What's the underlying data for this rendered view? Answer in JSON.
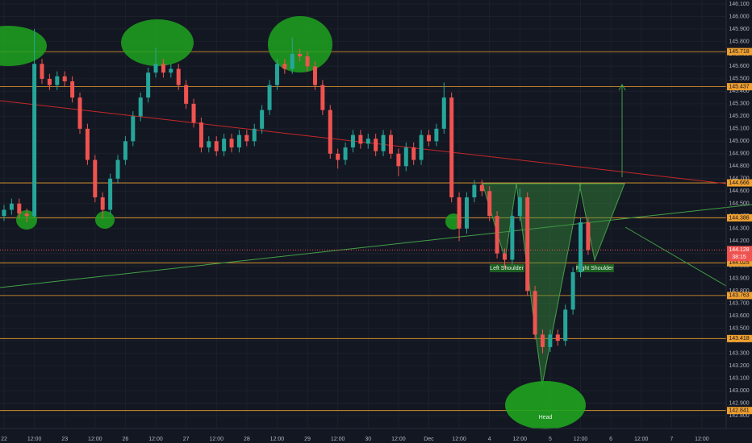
{
  "chart_data": {
    "type": "candlestick",
    "x": [
      0,
      0.25,
      0.5,
      0.75,
      1,
      1.25,
      1.5,
      1.75,
      2,
      2.25,
      2.5,
      2.75,
      3,
      3.25,
      3.5,
      3.75,
      4,
      4.25,
      4.5,
      4.75,
      5,
      5.25,
      5.5,
      5.75,
      6,
      6.25,
      6.5,
      6.75,
      7,
      7.25,
      7.5,
      7.75,
      8,
      8.25,
      8.5,
      8.75,
      9,
      9.25,
      9.5,
      9.75,
      10,
      10.25,
      10.5,
      10.75,
      11,
      11.25,
      11.5,
      11.75,
      12,
      12.25,
      12.5,
      12.75,
      13,
      13.25,
      13.5,
      13.75,
      14,
      14.25,
      14.5,
      14.75,
      15,
      15.25,
      15.5,
      15.75,
      16,
      16.25,
      16.5,
      16.75,
      17,
      17.25,
      17.5,
      17.75,
      18,
      18.25,
      18.5,
      18.75,
      19,
      19.25
    ],
    "open": [
      144.4,
      144.45,
      144.5,
      144.42,
      144.4,
      145.62,
      145.5,
      145.45,
      145.52,
      145.48,
      145.35,
      145.1,
      144.85,
      144.55,
      144.45,
      144.7,
      144.85,
      145.0,
      145.2,
      145.35,
      145.55,
      145.62,
      145.55,
      145.58,
      145.45,
      145.3,
      145.15,
      144.95,
      145.0,
      144.92,
      145.02,
      144.95,
      145.05,
      145.0,
      145.1,
      145.25,
      145.45,
      145.62,
      145.58,
      145.7,
      145.68,
      145.6,
      145.45,
      145.25,
      144.9,
      144.85,
      144.95,
      145.05,
      144.98,
      145.02,
      144.92,
      145.05,
      144.9,
      144.8,
      144.95,
      144.85,
      145.05,
      145.0,
      145.1,
      145.35,
      144.55,
      144.3,
      144.55,
      144.65,
      144.6,
      144.4,
      144.1,
      144.05,
      144.4,
      144.55,
      143.8,
      143.45,
      143.35,
      143.45,
      143.4,
      143.65,
      143.95,
      144.35
    ],
    "high": [
      144.49,
      144.54,
      144.54,
      144.46,
      145.9,
      145.66,
      145.54,
      145.56,
      145.56,
      145.52,
      145.39,
      145.14,
      144.89,
      144.59,
      144.74,
      144.89,
      145.04,
      145.24,
      145.39,
      145.59,
      145.75,
      145.66,
      145.62,
      145.62,
      145.49,
      145.34,
      145.19,
      145.04,
      145.04,
      145.06,
      145.06,
      145.09,
      145.09,
      145.14,
      145.29,
      145.49,
      145.66,
      145.66,
      145.83,
      145.74,
      145.72,
      145.64,
      145.49,
      145.29,
      144.94,
      144.99,
      145.09,
      145.09,
      145.06,
      145.06,
      145.09,
      145.09,
      144.94,
      144.99,
      144.99,
      145.09,
      145.09,
      145.14,
      145.47,
      145.39,
      144.59,
      144.59,
      144.69,
      144.69,
      144.64,
      144.44,
      144.14,
      144.44,
      144.62,
      144.59,
      143.84,
      143.49,
      143.49,
      143.49,
      143.69,
      143.99,
      144.39,
      144.39
    ],
    "low": [
      144.36,
      144.41,
      144.38,
      144.35,
      144.38,
      145.46,
      145.41,
      145.41,
      145.44,
      145.31,
      145.06,
      144.81,
      144.51,
      144.38,
      144.41,
      144.66,
      144.81,
      144.96,
      145.16,
      145.31,
      145.51,
      145.51,
      145.51,
      145.41,
      145.26,
      145.11,
      144.91,
      144.91,
      144.88,
      144.88,
      144.91,
      144.91,
      144.96,
      144.96,
      145.06,
      145.21,
      145.41,
      145.54,
      145.54,
      145.64,
      145.56,
      145.41,
      145.21,
      144.86,
      144.78,
      144.81,
      144.91,
      144.94,
      144.94,
      144.88,
      144.88,
      144.86,
      144.72,
      144.76,
      144.81,
      144.81,
      144.96,
      144.96,
      145.06,
      144.51,
      144.2,
      144.26,
      144.51,
      144.56,
      144.36,
      144.06,
      143.98,
      144.01,
      144.36,
      143.76,
      143.41,
      143.3,
      143.31,
      143.36,
      143.36,
      143.61,
      143.91,
      144.09
    ],
    "close": [
      144.45,
      144.5,
      144.42,
      144.4,
      145.62,
      145.5,
      145.45,
      145.52,
      145.48,
      145.35,
      145.1,
      144.85,
      144.55,
      144.45,
      144.7,
      144.85,
      145.0,
      145.2,
      145.35,
      145.55,
      145.62,
      145.55,
      145.58,
      145.45,
      145.3,
      145.15,
      144.95,
      145.0,
      144.92,
      145.02,
      144.95,
      145.05,
      145.0,
      145.1,
      145.25,
      145.45,
      145.62,
      145.58,
      145.7,
      145.68,
      145.6,
      145.45,
      145.25,
      144.9,
      144.85,
      144.95,
      145.05,
      144.98,
      145.02,
      144.92,
      145.05,
      144.9,
      144.8,
      144.95,
      144.85,
      145.05,
      145.0,
      145.1,
      145.35,
      144.55,
      144.3,
      144.55,
      144.65,
      144.6,
      144.4,
      144.1,
      144.05,
      144.4,
      144.55,
      143.8,
      143.45,
      143.35,
      143.45,
      143.4,
      143.65,
      143.95,
      144.35,
      144.128
    ],
    "up_color": "#26a69a",
    "down_color": "#ef5350",
    "xlim": [
      -0.133,
      23.8
    ],
    "ylim": [
      142.697,
      146.132
    ],
    "xticks": [
      {
        "value": 0,
        "label": "22"
      },
      {
        "value": 1,
        "label": "12:00"
      },
      {
        "value": 2,
        "label": "23"
      },
      {
        "value": 3,
        "label": "12:00"
      },
      {
        "value": 4,
        "label": "26"
      },
      {
        "value": 5,
        "label": "12:00"
      },
      {
        "value": 6,
        "label": "27"
      },
      {
        "value": 7,
        "label": "12:00"
      },
      {
        "value": 8,
        "label": "28"
      },
      {
        "value": 9,
        "label": "12:00"
      },
      {
        "value": 10,
        "label": "29"
      },
      {
        "value": 11,
        "label": "12:00"
      },
      {
        "value": 12,
        "label": "30"
      },
      {
        "value": 13,
        "label": "12:00"
      },
      {
        "value": 14,
        "label": "Dec"
      },
      {
        "value": 15,
        "label": "12:00"
      },
      {
        "value": 16,
        "label": "4"
      },
      {
        "value": 17,
        "label": "12:00"
      },
      {
        "value": 18,
        "label": "5"
      },
      {
        "value": 19,
        "label": "12:00"
      },
      {
        "value": 20,
        "label": "6"
      },
      {
        "value": 21,
        "label": "12:00"
      },
      {
        "value": 22,
        "label": "7"
      },
      {
        "value": 23,
        "label": "12:00"
      }
    ],
    "yticks": [
      {
        "value": 142.8,
        "label": "142.800"
      },
      {
        "value": 142.9,
        "label": "142.900"
      },
      {
        "value": 143.0,
        "label": "143.000"
      },
      {
        "value": 143.1,
        "label": "143.100"
      },
      {
        "value": 143.2,
        "label": "143.200"
      },
      {
        "value": 143.3,
        "label": "143.300"
      },
      {
        "value": 143.4,
        "label": "143.400"
      },
      {
        "value": 143.5,
        "label": "143.500"
      },
      {
        "value": 143.6,
        "label": "143.600"
      },
      {
        "value": 143.7,
        "label": "143.700"
      },
      {
        "value": 143.8,
        "label": "143.800"
      },
      {
        "value": 143.9,
        "label": "143.900"
      },
      {
        "value": 144.0,
        "label": "144.000"
      },
      {
        "value": 144.1,
        "label": "144.100"
      },
      {
        "value": 144.2,
        "label": "144.200"
      },
      {
        "value": 144.3,
        "label": "144.300"
      },
      {
        "value": 144.4,
        "label": "144.400"
      },
      {
        "value": 144.5,
        "label": "144.500"
      },
      {
        "value": 144.6,
        "label": "144.600"
      },
      {
        "value": 144.7,
        "label": "144.700"
      },
      {
        "value": 144.8,
        "label": "144.800"
      },
      {
        "value": 144.9,
        "label": "144.900"
      },
      {
        "value": 145.0,
        "label": "145.000"
      },
      {
        "value": 145.1,
        "label": "145.100"
      },
      {
        "value": 145.2,
        "label": "145.200"
      },
      {
        "value": 145.3,
        "label": "145.300"
      },
      {
        "value": 145.4,
        "label": "145.400"
      },
      {
        "value": 145.5,
        "label": "145.500"
      },
      {
        "value": 145.6,
        "label": "145.600"
      },
      {
        "value": 145.7,
        "label": "145.700"
      },
      {
        "value": 145.8,
        "label": "145.800"
      },
      {
        "value": 145.9,
        "label": "145.900"
      },
      {
        "value": 146.0,
        "label": "146.000"
      },
      {
        "value": 146.1,
        "label": "146.100"
      }
    ],
    "grid": true,
    "levels": [
      145.718,
      145.437,
      144.666,
      144.386,
      144.025,
      143.763,
      143.418,
      142.841
    ],
    "level_color": "#f0a030",
    "last_price": 144.128,
    "countdown": "38:15",
    "last_color": "#ef5350",
    "annotations": {
      "left_shoulder": "Left Shoulder",
      "right_shoulder": "Right Shoulder",
      "head": "Head"
    }
  }
}
